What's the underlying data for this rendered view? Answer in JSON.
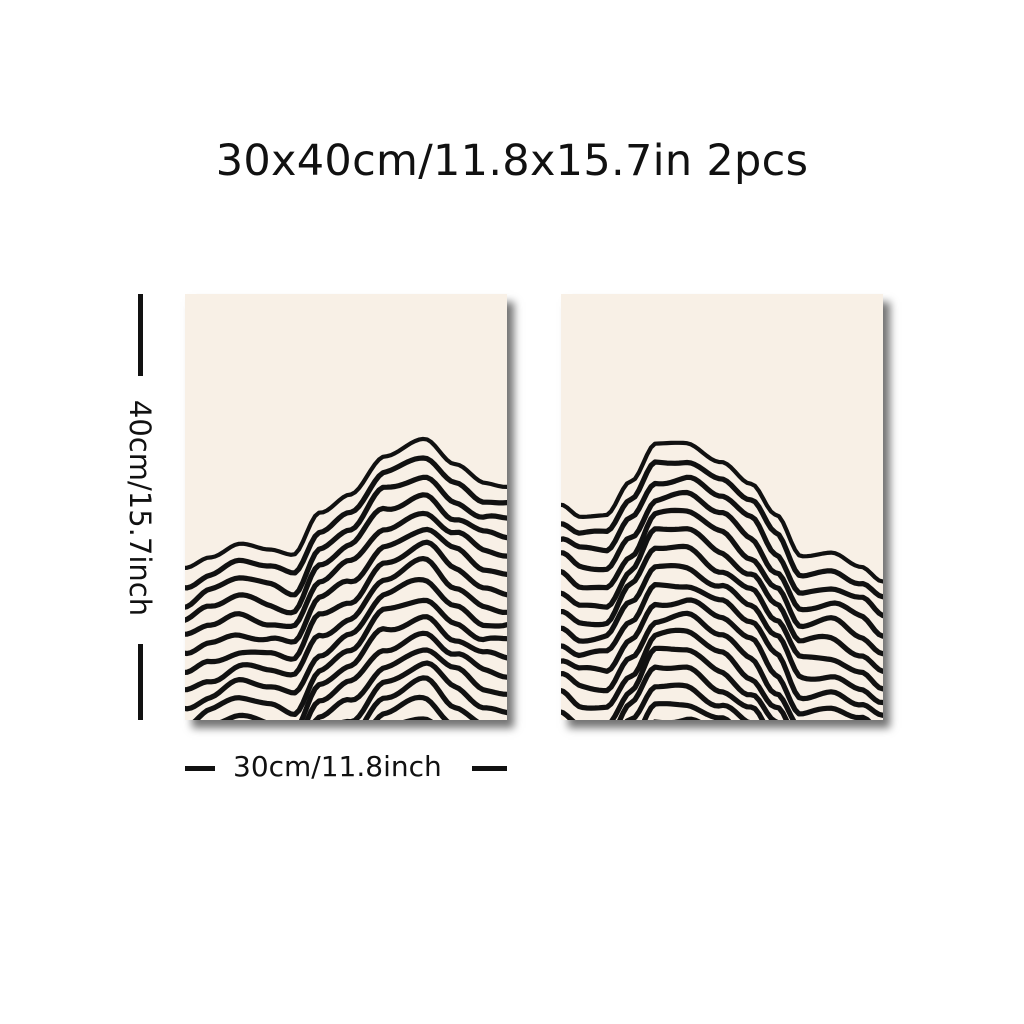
{
  "title": "30x40cm/11.8x15.7in 2pcs",
  "dimensions": {
    "height_label": "40cm/15.7inch",
    "width_label": "30cm/11.8inch"
  },
  "colors": {
    "canvas": "#f8f0e6",
    "ink": "#111111",
    "background": "#ffffff"
  },
  "artwork": {
    "left_panel": "mountain-line-art-left",
    "right_panel": "mountain-line-art-right"
  }
}
